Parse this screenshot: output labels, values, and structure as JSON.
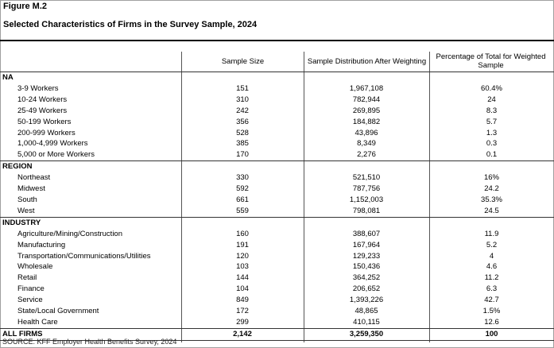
{
  "figure_label": "Figure M.2",
  "title": "Selected Characteristics of Firms in the Survey Sample, 2024",
  "columns": [
    "Sample Size",
    "Sample Distribution After Weighting",
    "Percentage of Total for Weighted Sample"
  ],
  "sections": [
    {
      "label": "NA",
      "rows": [
        [
          "3-9 Workers",
          "151",
          "1,967,108",
          "60.4%"
        ],
        [
          "10-24 Workers",
          "310",
          "782,944",
          "24"
        ],
        [
          "25-49 Workers",
          "242",
          "269,895",
          "8.3"
        ],
        [
          "50-199 Workers",
          "356",
          "184,882",
          "5.7"
        ],
        [
          "200-999 Workers",
          "528",
          "43,896",
          "1.3"
        ],
        [
          "1,000-4,999 Workers",
          "385",
          "8,349",
          "0.3"
        ],
        [
          "5,000 or More Workers",
          "170",
          "2,276",
          "0.1"
        ]
      ]
    },
    {
      "label": "REGION",
      "rows": [
        [
          "Northeast",
          "330",
          "521,510",
          "16%"
        ],
        [
          "Midwest",
          "592",
          "787,756",
          "24.2"
        ],
        [
          "South",
          "661",
          "1,152,003",
          "35.3%"
        ],
        [
          "West",
          "559",
          "798,081",
          "24.5"
        ]
      ]
    },
    {
      "label": "INDUSTRY",
      "rows": [
        [
          "Agriculture/Mining/Construction",
          "160",
          "388,607",
          "11.9"
        ],
        [
          "Manufacturing",
          "191",
          "167,964",
          "5.2"
        ],
        [
          "Transportation/Communications/Utilities",
          "120",
          "129,233",
          "4"
        ],
        [
          "Wholesale",
          "103",
          "150,436",
          "4.6"
        ],
        [
          "Retail",
          "144",
          "364,252",
          "11.2"
        ],
        [
          "Finance",
          "104",
          "206,652",
          "6.3"
        ],
        [
          "Service",
          "849",
          "1,393,226",
          "42.7"
        ],
        [
          "State/Local Government",
          "172",
          "48,865",
          "1.5%"
        ],
        [
          "Health Care",
          "299",
          "410,115",
          "12.6"
        ]
      ]
    }
  ],
  "total": [
    "ALL FIRMS",
    "2,142",
    "3,259,350",
    "100"
  ],
  "source": "SOURCE: KFF Employer Health Benefits Survey, 2024"
}
